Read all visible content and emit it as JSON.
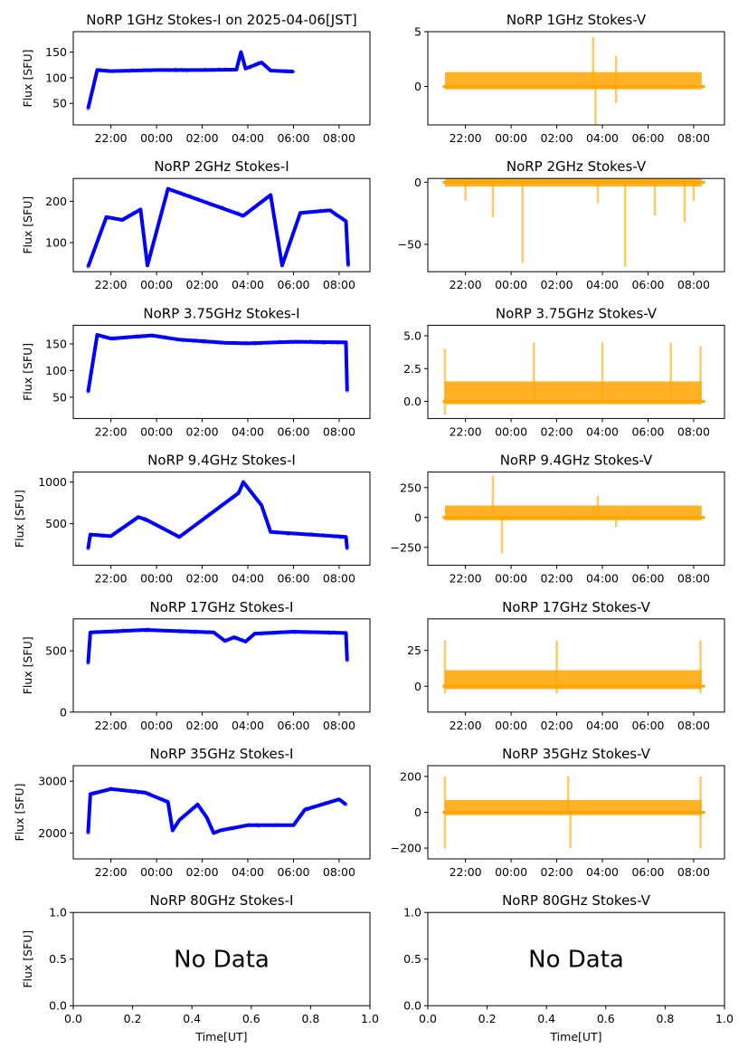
{
  "figure": {
    "time_axis_label": "Time[UT]",
    "flux_axis_label": "Flux [SFU]",
    "no_data_text": "No Data",
    "colors": {
      "stokes_i": "#0000ff",
      "stokes_v": "#ffa500"
    }
  },
  "chart_data": [
    {
      "type": "scatter",
      "title": "NoRP 1GHz Stokes-I on 2025-04-06[JST]",
      "column": "I",
      "ylabel": "Flux [SFU]",
      "xlabel": "",
      "ylim": [
        8,
        190
      ],
      "yticks": [
        50,
        100,
        150
      ],
      "ytick_labels": [
        "50",
        "100",
        "150"
      ],
      "xticks": [
        "22:00",
        "00:00",
        "02:00",
        "04:00",
        "06:00",
        "08:00"
      ],
      "xrange_hours": [
        20.35,
        33.35
      ],
      "series": [
        {
          "name": "Stokes-I",
          "color": "#0000ff",
          "points": [
            [
              21.0,
              40
            ],
            [
              21.4,
              115
            ],
            [
              22.0,
              113
            ],
            [
              23.0,
              114
            ],
            [
              24.0,
              115
            ],
            [
              26.0,
              115
            ],
            [
              27.5,
              116
            ],
            [
              27.7,
              150
            ],
            [
              27.9,
              118
            ],
            [
              28.6,
              130
            ],
            [
              29.0,
              114
            ],
            [
              30.0,
              112
            ]
          ]
        }
      ]
    },
    {
      "type": "scatter",
      "title": "NoRP 1GHz Stokes-V",
      "column": "V",
      "ylabel": "",
      "xlabel": "",
      "ylim": [
        -3.5,
        5
      ],
      "yticks": [
        0,
        5
      ],
      "ytick_labels": [
        "0",
        "5"
      ],
      "xticks": [
        "22:00",
        "00:00",
        "02:00",
        "04:00",
        "06:00",
        "08:00"
      ],
      "xrange_hours": [
        20.35,
        33.35
      ],
      "series": [
        {
          "name": "Stokes-V",
          "color": "#ffa500",
          "points": [
            [
              21.0,
              0
            ],
            [
              24.0,
              0
            ],
            [
              27.6,
              4.5
            ],
            [
              27.7,
              -3.5
            ],
            [
              28.6,
              2.8
            ],
            [
              28.6,
              -1.5
            ],
            [
              30.0,
              0
            ],
            [
              32.5,
              0
            ]
          ]
        }
      ]
    },
    {
      "type": "scatter",
      "title": "NoRP 2GHz Stokes-I",
      "column": "I",
      "ylabel": "Flux [SFU]",
      "xlabel": "",
      "ylim": [
        30,
        255
      ],
      "yticks": [
        100,
        200
      ],
      "ytick_labels": [
        "100",
        "200"
      ],
      "xticks": [
        "22:00",
        "00:00",
        "02:00",
        "04:00",
        "06:00",
        "08:00"
      ],
      "xrange_hours": [
        20.35,
        33.35
      ],
      "series": [
        {
          "name": "Stokes-I",
          "color": "#0000ff",
          "points": [
            [
              21.0,
              42
            ],
            [
              21.8,
              162
            ],
            [
              22.5,
              155
            ],
            [
              23.3,
              180
            ],
            [
              23.6,
              45
            ],
            [
              24.5,
              230
            ],
            [
              27.8,
              165
            ],
            [
              29.0,
              215
            ],
            [
              29.5,
              45
            ],
            [
              30.3,
              172
            ],
            [
              31.6,
              178
            ],
            [
              32.3,
              152
            ],
            [
              32.4,
              45
            ]
          ]
        }
      ]
    },
    {
      "type": "scatter",
      "title": "NoRP 2GHz Stokes-V",
      "column": "V",
      "ylabel": "",
      "xlabel": "",
      "ylim": [
        -72,
        3
      ],
      "yticks": [
        -50,
        0
      ],
      "ytick_labels": [
        "−50",
        "0"
      ],
      "xticks": [
        "22:00",
        "00:00",
        "02:00",
        "04:00",
        "06:00",
        "08:00"
      ],
      "xrange_hours": [
        20.35,
        33.35
      ],
      "series": [
        {
          "name": "Stokes-V",
          "color": "#ffa500",
          "points": [
            [
              21.0,
              0
            ],
            [
              22.0,
              -15
            ],
            [
              23.2,
              -28
            ],
            [
              24.5,
              -65
            ],
            [
              27.8,
              -17
            ],
            [
              29.0,
              -68
            ],
            [
              30.3,
              -27
            ],
            [
              31.6,
              -32
            ],
            [
              32.0,
              -15
            ],
            [
              32.5,
              0
            ]
          ]
        }
      ]
    },
    {
      "type": "scatter",
      "title": "NoRP 3.75GHz Stokes-I",
      "column": "I",
      "ylabel": "Flux [SFU]",
      "xlabel": "",
      "ylim": [
        10,
        185
      ],
      "yticks": [
        50,
        100,
        150
      ],
      "ytick_labels": [
        "50",
        "100",
        "150"
      ],
      "xticks": [
        "22:00",
        "00:00",
        "02:00",
        "04:00",
        "06:00",
        "08:00"
      ],
      "xrange_hours": [
        20.35,
        33.35
      ],
      "series": [
        {
          "name": "Stokes-I",
          "color": "#0000ff",
          "points": [
            [
              21.0,
              60
            ],
            [
              21.4,
              167
            ],
            [
              22.0,
              160
            ],
            [
              23.8,
              166
            ],
            [
              25.0,
              158
            ],
            [
              27.0,
              152
            ],
            [
              28.0,
              151
            ],
            [
              30.0,
              154
            ],
            [
              32.3,
              153
            ],
            [
              32.35,
              62
            ]
          ]
        }
      ]
    },
    {
      "type": "scatter",
      "title": "NoRP 3.75GHz Stokes-V",
      "column": "V",
      "ylabel": "",
      "xlabel": "",
      "ylim": [
        -1.3,
        5.8
      ],
      "yticks": [
        0.0,
        2.5,
        5.0
      ],
      "ytick_labels": [
        "0.0",
        "2.5",
        "5.0"
      ],
      "xticks": [
        "22:00",
        "00:00",
        "02:00",
        "04:00",
        "06:00",
        "08:00"
      ],
      "xrange_hours": [
        20.35,
        33.35
      ],
      "series": [
        {
          "name": "Stokes-V",
          "color": "#ffa500",
          "points": [
            [
              21.0,
              0
            ],
            [
              21.1,
              -1.0
            ],
            [
              21.1,
              4.0
            ],
            [
              25.0,
              4.5
            ],
            [
              28.0,
              4.5
            ],
            [
              31.0,
              4.5
            ],
            [
              32.3,
              4.2
            ],
            [
              32.5,
              0
            ]
          ]
        }
      ]
    },
    {
      "type": "scatter",
      "title": "NoRP 9.4GHz Stokes-I",
      "column": "I",
      "ylabel": "Flux [SFU]",
      "xlabel": "",
      "ylim": [
        0,
        1120
      ],
      "yticks": [
        500,
        1000
      ],
      "ytick_labels": [
        "500",
        "1000"
      ],
      "xticks": [
        "22:00",
        "00:00",
        "02:00",
        "04:00",
        "06:00",
        "08:00"
      ],
      "xrange_hours": [
        20.35,
        33.35
      ],
      "series": [
        {
          "name": "Stokes-I",
          "color": "#0000ff",
          "points": [
            [
              21.0,
              200
            ],
            [
              21.1,
              370
            ],
            [
              22.0,
              350
            ],
            [
              23.2,
              580
            ],
            [
              23.6,
              540
            ],
            [
              25.0,
              340
            ],
            [
              27.6,
              870
            ],
            [
              27.8,
              1000
            ],
            [
              28.6,
              720
            ],
            [
              29.0,
              400
            ],
            [
              32.3,
              340
            ],
            [
              32.35,
              200
            ]
          ]
        }
      ]
    },
    {
      "type": "scatter",
      "title": "NoRP 9.4GHz Stokes-V",
      "column": "V",
      "ylabel": "",
      "xlabel": "",
      "ylim": [
        -400,
        380
      ],
      "yticks": [
        -250,
        0,
        250
      ],
      "ytick_labels": [
        "−250",
        "0",
        "250"
      ],
      "xticks": [
        "22:00",
        "00:00",
        "02:00",
        "04:00",
        "06:00",
        "08:00"
      ],
      "xrange_hours": [
        20.35,
        33.35
      ],
      "series": [
        {
          "name": "Stokes-V",
          "color": "#ffa500",
          "points": [
            [
              21.0,
              0
            ],
            [
              23.2,
              350
            ],
            [
              23.6,
              -300
            ],
            [
              27.6,
              100
            ],
            [
              27.8,
              180
            ],
            [
              28.6,
              -80
            ],
            [
              29.1,
              60
            ],
            [
              32.5,
              0
            ]
          ]
        }
      ]
    },
    {
      "type": "scatter",
      "title": "NoRP 17GHz Stokes-I",
      "column": "I",
      "ylabel": "Flux [SFU]",
      "xlabel": "",
      "ylim": [
        0,
        760
      ],
      "yticks": [
        0,
        500
      ],
      "ytick_labels": [
        "0",
        "500"
      ],
      "xticks": [
        "22:00",
        "00:00",
        "02:00",
        "04:00",
        "06:00",
        "08:00"
      ],
      "xrange_hours": [
        20.35,
        33.35
      ],
      "series": [
        {
          "name": "Stokes-I",
          "color": "#0000ff",
          "points": [
            [
              21.0,
              400
            ],
            [
              21.1,
              650
            ],
            [
              23.5,
              670
            ],
            [
              26.5,
              650
            ],
            [
              27.0,
              580
            ],
            [
              27.4,
              610
            ],
            [
              27.9,
              575
            ],
            [
              28.3,
              640
            ],
            [
              30.0,
              655
            ],
            [
              32.3,
              645
            ],
            [
              32.35,
              420
            ]
          ]
        }
      ]
    },
    {
      "type": "scatter",
      "title": "NoRP 17GHz Stokes-V",
      "column": "V",
      "ylabel": "",
      "xlabel": "",
      "ylim": [
        -18,
        47
      ],
      "yticks": [
        0,
        25
      ],
      "ytick_labels": [
        "0",
        "25"
      ],
      "xticks": [
        "22:00",
        "00:00",
        "02:00",
        "04:00",
        "06:00",
        "08:00"
      ],
      "xrange_hours": [
        20.35,
        33.35
      ],
      "series": [
        {
          "name": "Stokes-V",
          "color": "#ffa500",
          "points": [
            [
              21.0,
              0
            ],
            [
              21.1,
              32
            ],
            [
              21.1,
              -5
            ],
            [
              26.0,
              32
            ],
            [
              26.0,
              -5
            ],
            [
              32.3,
              32
            ],
            [
              32.3,
              -5
            ],
            [
              32.5,
              0
            ]
          ]
        }
      ]
    },
    {
      "type": "scatter",
      "title": "NoRP 35GHz Stokes-I",
      "column": "I",
      "ylabel": "Flux [SFU]",
      "xlabel": "",
      "ylim": [
        1500,
        3300
      ],
      "yticks": [
        2000,
        3000
      ],
      "ytick_labels": [
        "2000",
        "3000"
      ],
      "xticks": [
        "22:00",
        "00:00",
        "02:00",
        "04:00",
        "06:00",
        "08:00"
      ],
      "xrange_hours": [
        20.35,
        33.35
      ],
      "series": [
        {
          "name": "Stokes-I",
          "color": "#0000ff",
          "points": [
            [
              21.0,
              2000
            ],
            [
              21.1,
              2750
            ],
            [
              22.0,
              2850
            ],
            [
              23.5,
              2780
            ],
            [
              24.5,
              2600
            ],
            [
              24.7,
              2050
            ],
            [
              25.0,
              2250
            ],
            [
              25.8,
              2550
            ],
            [
              26.2,
              2300
            ],
            [
              26.5,
              2000
            ],
            [
              26.8,
              2050
            ],
            [
              28.0,
              2150
            ],
            [
              30.0,
              2150
            ],
            [
              30.5,
              2450
            ],
            [
              32.0,
              2650
            ],
            [
              32.3,
              2550
            ]
          ]
        }
      ]
    },
    {
      "type": "scatter",
      "title": "NoRP 35GHz Stokes-V",
      "column": "V",
      "ylabel": "",
      "xlabel": "",
      "ylim": [
        -260,
        260
      ],
      "yticks": [
        -200,
        0,
        200
      ],
      "ytick_labels": [
        "−200",
        "0",
        "200"
      ],
      "xticks": [
        "22:00",
        "00:00",
        "02:00",
        "04:00",
        "06:00",
        "08:00"
      ],
      "xrange_hours": [
        20.35,
        33.35
      ],
      "series": [
        {
          "name": "Stokes-V",
          "color": "#ffa500",
          "points": [
            [
              21.0,
              0
            ],
            [
              21.1,
              200
            ],
            [
              21.1,
              -200
            ],
            [
              26.5,
              200
            ],
            [
              26.6,
              -200
            ],
            [
              32.3,
              200
            ],
            [
              32.3,
              -200
            ],
            [
              32.5,
              0
            ]
          ]
        }
      ]
    },
    {
      "type": "scatter",
      "title": "NoRP 80GHz Stokes-I",
      "column": "I",
      "ylabel": "Flux [SFU]",
      "xlabel": "Time[UT]",
      "ylim": [
        0,
        1
      ],
      "yticks": [
        0.0,
        0.5,
        1.0
      ],
      "ytick_labels": [
        "0.0",
        "0.5",
        "1.0"
      ],
      "xticks": [
        "0.0",
        "0.2",
        "0.4",
        "0.6",
        "0.8",
        "1.0"
      ],
      "no_data": true,
      "series": []
    },
    {
      "type": "scatter",
      "title": "NoRP 80GHz Stokes-V",
      "column": "V",
      "ylabel": "",
      "xlabel": "Time[UT]",
      "ylim": [
        0,
        1
      ],
      "yticks": [
        0.0,
        0.5,
        1.0
      ],
      "ytick_labels": [
        "0.0",
        "0.5",
        "1.0"
      ],
      "xticks": [
        "0.0",
        "0.2",
        "0.4",
        "0.6",
        "0.8",
        "1.0"
      ],
      "no_data": true,
      "series": []
    }
  ]
}
